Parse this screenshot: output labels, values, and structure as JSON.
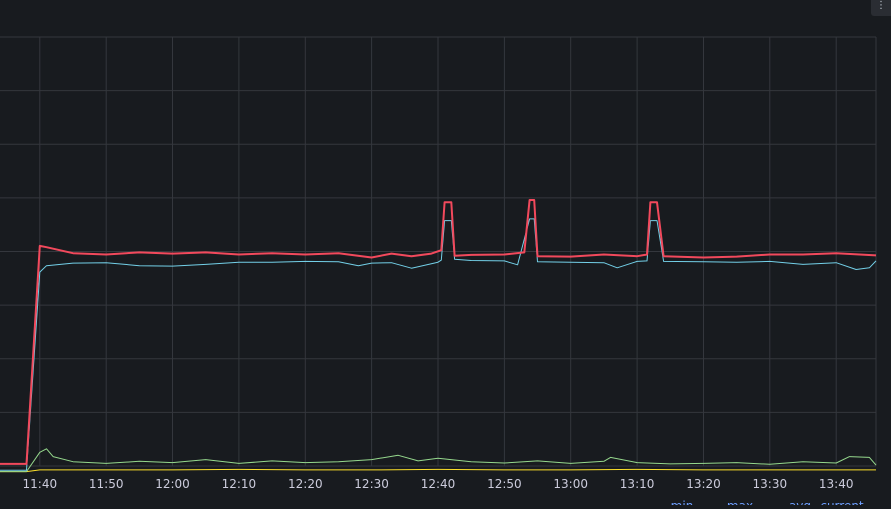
{
  "chart_data": {
    "type": "line",
    "title": "",
    "xlabel": "",
    "ylabel": "",
    "grid": true,
    "legend": "bottom-right",
    "x_ticks": [
      "11:40",
      "11:50",
      "12:00",
      "12:10",
      "12:20",
      "12:30",
      "12:40",
      "12:50",
      "13:00",
      "13:10",
      "13:20",
      "13:30",
      "13:40"
    ],
    "x_range": [
      "11:34",
      "13:46"
    ],
    "y_range": [
      0,
      100
    ],
    "legend_columns": [
      "min",
      "max",
      "avg",
      "current"
    ],
    "series": [
      {
        "color": "#f2495c",
        "points": [
          [
            "11:34",
            0.5
          ],
          [
            "11:38",
            0.5
          ],
          [
            "11:40",
            51.3
          ],
          [
            "11:41",
            51
          ],
          [
            "11:45",
            49.6
          ],
          [
            "11:50",
            49.3
          ],
          [
            "11:55",
            49.8
          ],
          [
            "12:00",
            49.5
          ],
          [
            "12:05",
            49.8
          ],
          [
            "12:10",
            49.3
          ],
          [
            "12:15",
            49.6
          ],
          [
            "12:20",
            49.3
          ],
          [
            "12:25",
            49.6
          ],
          [
            "12:30",
            48.6
          ],
          [
            "12:33",
            49.5
          ],
          [
            "12:36",
            48.9
          ],
          [
            "12:39",
            49.5
          ],
          [
            "12:40.5",
            50.3
          ],
          [
            "12:41",
            61.5
          ],
          [
            "12:42",
            61.5
          ],
          [
            "12:42.5",
            49
          ],
          [
            "12:45",
            49.2
          ],
          [
            "12:50",
            49.3
          ],
          [
            "12:53",
            49.8
          ],
          [
            "12:53.8",
            62
          ],
          [
            "12:54.5",
            62
          ],
          [
            "12:55",
            48.9
          ],
          [
            "13:00",
            48.8
          ],
          [
            "13:05",
            49.3
          ],
          [
            "13:10",
            48.9
          ],
          [
            "13:11.5",
            49.3
          ],
          [
            "13:12",
            61.5
          ],
          [
            "13:13",
            61.5
          ],
          [
            "13:14",
            48.9
          ],
          [
            "13:20",
            48.6
          ],
          [
            "13:25",
            48.8
          ],
          [
            "13:30",
            49.3
          ],
          [
            "13:35",
            49.3
          ],
          [
            "13:40",
            49.6
          ],
          [
            "13:46",
            49.1
          ]
        ]
      },
      {
        "color": "#73d0e8",
        "points": [
          [
            "11:34",
            -1
          ],
          [
            "11:38",
            -1
          ],
          [
            "11:40",
            45.2
          ],
          [
            "11:41",
            46.7
          ],
          [
            "11:45",
            47.3
          ],
          [
            "11:50",
            47.4
          ],
          [
            "11:55",
            46.7
          ],
          [
            "12:00",
            46.6
          ],
          [
            "12:05",
            47.0
          ],
          [
            "12:10",
            47.5
          ],
          [
            "12:15",
            47.5
          ],
          [
            "12:20",
            47.7
          ],
          [
            "12:25",
            47.6
          ],
          [
            "12:28",
            46.7
          ],
          [
            "12:30",
            47.3
          ],
          [
            "12:33",
            47.4
          ],
          [
            "12:36",
            46.1
          ],
          [
            "12:40",
            47.5
          ],
          [
            "12:40.5",
            48
          ],
          [
            "12:41",
            57.2
          ],
          [
            "12:42",
            57.2
          ],
          [
            "12:42.5",
            48.2
          ],
          [
            "12:45",
            47.9
          ],
          [
            "12:50",
            47.8
          ],
          [
            "12:52",
            46.9
          ],
          [
            "12:53.8",
            57.6
          ],
          [
            "12:54.5",
            57.6
          ],
          [
            "12:55",
            47.6
          ],
          [
            "13:00",
            47.5
          ],
          [
            "13:05",
            47.4
          ],
          [
            "13:07",
            46.2
          ],
          [
            "13:10",
            47.7
          ],
          [
            "13:11.5",
            47.8
          ],
          [
            "13:12",
            57.2
          ],
          [
            "13:13",
            57.2
          ],
          [
            "13:14",
            47.7
          ],
          [
            "13:20",
            47.6
          ],
          [
            "13:25",
            47.5
          ],
          [
            "13:30",
            47.7
          ],
          [
            "13:35",
            47.0
          ],
          [
            "13:40",
            47.4
          ],
          [
            "13:43",
            45.8
          ],
          [
            "13:45",
            46.2
          ],
          [
            "13:46",
            47.8
          ]
        ]
      },
      {
        "color": "#96d98d",
        "points": [
          [
            "11:34",
            -1.3
          ],
          [
            "11:38",
            -1.3
          ],
          [
            "11:40",
            3.2
          ],
          [
            "11:41",
            4.0
          ],
          [
            "11:42",
            2.2
          ],
          [
            "11:45",
            1.0
          ],
          [
            "11:50",
            0.6
          ],
          [
            "11:55",
            1.1
          ],
          [
            "12:00",
            0.8
          ],
          [
            "12:05",
            1.5
          ],
          [
            "12:10",
            0.6
          ],
          [
            "12:15",
            1.2
          ],
          [
            "12:20",
            0.8
          ],
          [
            "12:25",
            1.0
          ],
          [
            "12:30",
            1.5
          ],
          [
            "12:34",
            2.5
          ],
          [
            "12:37",
            1.2
          ],
          [
            "12:40",
            1.8
          ],
          [
            "12:45",
            1.0
          ],
          [
            "12:50",
            0.7
          ],
          [
            "12:55",
            1.2
          ],
          [
            "13:00",
            0.6
          ],
          [
            "13:05",
            1.1
          ],
          [
            "13:06",
            2.0
          ],
          [
            "13:10",
            0.8
          ],
          [
            "13:15",
            0.5
          ],
          [
            "13:20",
            0.6
          ],
          [
            "13:25",
            0.8
          ],
          [
            "13:30",
            0.4
          ],
          [
            "13:35",
            1.0
          ],
          [
            "13:40",
            0.7
          ],
          [
            "13:42",
            2.2
          ],
          [
            "13:45",
            2.0
          ],
          [
            "13:46",
            0.2
          ]
        ]
      },
      {
        "color": "#fade2a",
        "points": [
          [
            "11:34",
            -1.3
          ],
          [
            "11:38",
            -1.3
          ],
          [
            "11:40",
            -0.9
          ],
          [
            "11:50",
            -0.9
          ],
          [
            "12:00",
            -0.9
          ],
          [
            "12:10",
            -0.8
          ],
          [
            "12:20",
            -0.9
          ],
          [
            "12:30",
            -0.9
          ],
          [
            "12:40",
            -0.8
          ],
          [
            "12:50",
            -0.9
          ],
          [
            "13:00",
            -0.9
          ],
          [
            "13:10",
            -0.8
          ],
          [
            "13:20",
            -0.9
          ],
          [
            "13:30",
            -0.9
          ],
          [
            "13:40",
            -0.9
          ],
          [
            "13:46",
            -0.9
          ]
        ]
      }
    ]
  }
}
